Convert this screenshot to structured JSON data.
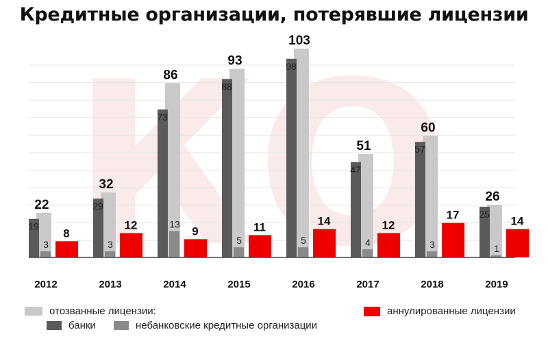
{
  "title": "Кредитные организации, потерявшие лицензии",
  "watermark": "КО",
  "colors": {
    "revoked_total": "#c9c9c9",
    "banks": "#5a5a5a",
    "nonbank": "#8a8a8a",
    "annulled": "#ee0000",
    "watermark": "#fbeaea",
    "grid": "#e6e6e6"
  },
  "legend": {
    "revoked_label": "отозванные лицензии:",
    "banks_label": "банки",
    "nonbank_label": "небанковские кредитные организации",
    "annulled_label": "аннулированные лицензии"
  },
  "chart_data": {
    "type": "bar",
    "categories": [
      "2012",
      "2013",
      "2014",
      "2015",
      "2016",
      "2017",
      "2018",
      "2019"
    ],
    "series": [
      {
        "name": "отозванные лицензии:",
        "values": [
          22,
          32,
          86,
          93,
          103,
          51,
          60,
          26
        ]
      },
      {
        "name": "банки",
        "values": [
          19,
          29,
          73,
          88,
          98,
          47,
          57,
          25
        ]
      },
      {
        "name": "небанковские кредитные организации",
        "values": [
          3,
          3,
          13,
          5,
          5,
          4,
          3,
          1
        ]
      },
      {
        "name": "аннулированные лицензии",
        "values": [
          8,
          12,
          9,
          11,
          14,
          12,
          17,
          14
        ]
      }
    ],
    "ylim": [
      0,
      103
    ],
    "grid": true,
    "legend_position": "bottom"
  }
}
